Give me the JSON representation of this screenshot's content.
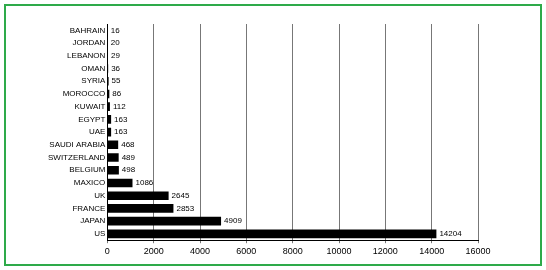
{
  "chart_data": {
    "type": "bar",
    "orientation": "horizontal",
    "categories": [
      "BAHRAIN",
      "JORDAN",
      "LEBANON",
      "OMAN",
      "SYRIA",
      "MOROCCO",
      "KUWAIT",
      "EGYPT",
      "UAE",
      "SAUDI ARABIA",
      "SWITZERLAND",
      "BELGIUM",
      "MAXICO",
      "UK",
      "FRANCE",
      "JAPAN",
      "US"
    ],
    "values": [
      16,
      20,
      29,
      36,
      55,
      86,
      112,
      163,
      163,
      468,
      489,
      498,
      1086,
      2645,
      2853,
      4909,
      14204
    ],
    "color": "#000000",
    "xlim": [
      0,
      16000
    ],
    "xticks": [
      0,
      2000,
      4000,
      6000,
      8000,
      10000,
      12000,
      14000,
      16000
    ],
    "grid": true,
    "data_labels": true
  }
}
